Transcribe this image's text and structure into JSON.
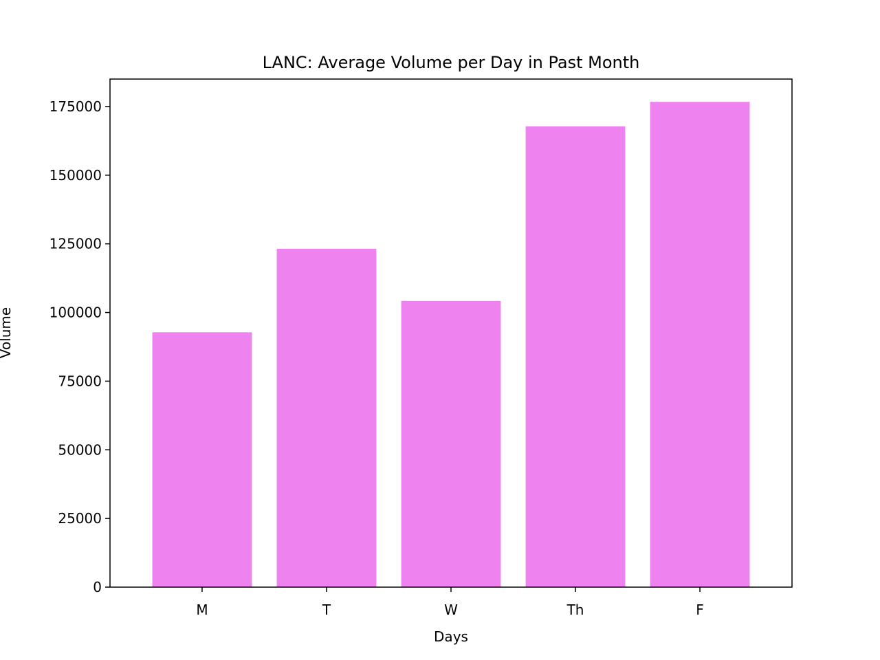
{
  "chart_data": {
    "type": "bar",
    "title": "LANC: Average Volume per Day in Past Month",
    "xlabel": "Days",
    "ylabel": "Volume",
    "categories": [
      "M",
      "T",
      "W",
      "Th",
      "F"
    ],
    "values": [
      92800,
      123200,
      104200,
      167800,
      176700
    ],
    "ylim": [
      0,
      185000
    ],
    "yticks": [
      0,
      25000,
      50000,
      75000,
      100000,
      125000,
      150000,
      175000
    ],
    "grid": false,
    "legend": "none",
    "bar_color": "#ee82ee"
  }
}
